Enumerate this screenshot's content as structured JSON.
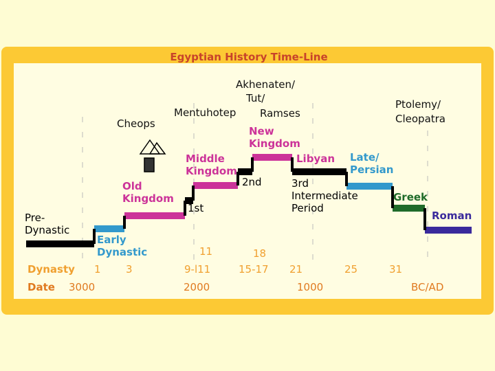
{
  "title": "Egyptian History Time-Line",
  "periods": [
    {
      "lines": [
        "Pre-",
        "Dynastic"
      ]
    },
    {
      "lines": [
        "Early",
        "Dynastic"
      ]
    },
    {
      "lines": [
        "Old",
        "Kingdom"
      ]
    },
    {
      "lines": [
        "1st"
      ]
    },
    {
      "lines": [
        "Middle",
        "Kingdom"
      ]
    },
    {
      "lines": [
        "2nd"
      ]
    },
    {
      "lines": [
        "New",
        "Kingdom"
      ]
    },
    {
      "lines": [
        "3rd",
        "Intermediate",
        "Period"
      ]
    },
    {
      "lines": [
        "Libyan"
      ]
    },
    {
      "lines": [
        "Late/",
        "Persian"
      ]
    },
    {
      "lines": [
        "Greek"
      ]
    },
    {
      "lines": [
        "Roman"
      ]
    }
  ],
  "rulers": [
    {
      "lines": [
        "Cheops"
      ]
    },
    {
      "lines": [
        "Mentuhotep"
      ]
    },
    {
      "lines": [
        "Akhenaten/",
        "Tut/",
        "Ramses"
      ]
    },
    {
      "lines": [
        "Ptolemy/",
        "Cleopatra"
      ]
    }
  ],
  "dynasty_row": {
    "label": "Dynasty",
    "values": [
      "1",
      "3",
      "9-l11",
      "15-17",
      "21",
      "25",
      "31"
    ],
    "upper": [
      "11",
      "18"
    ]
  },
  "date_row": {
    "label": "Date",
    "values": [
      "3000",
      "2000",
      "1000",
      "BC/AD"
    ]
  }
}
